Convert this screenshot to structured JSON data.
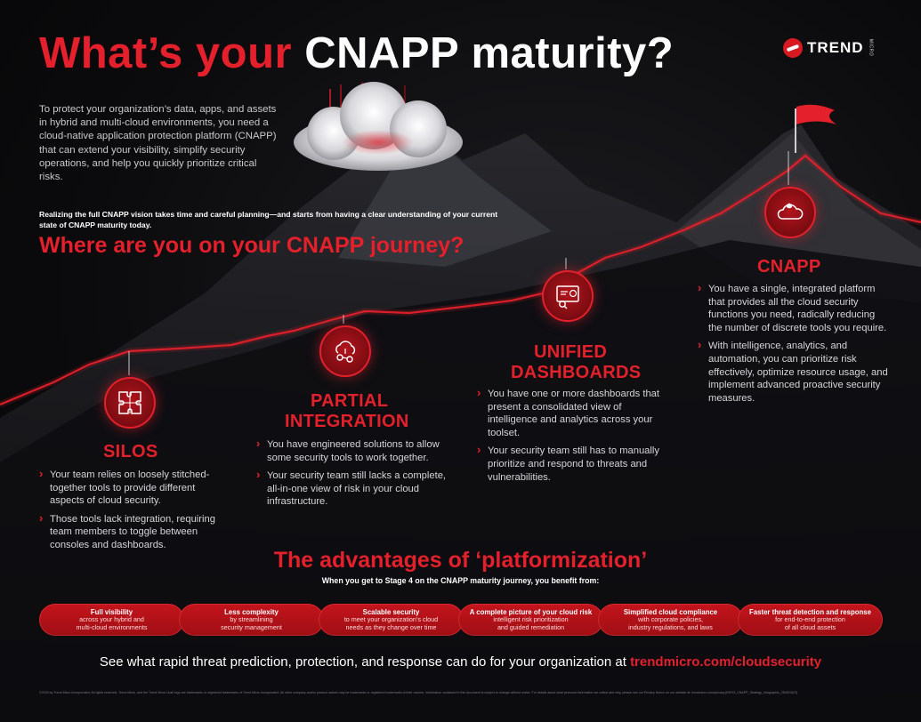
{
  "title": {
    "part1": "What’s your ",
    "part2": "CNAPP maturity?"
  },
  "logo": {
    "text": "TREND",
    "small": "MICRO"
  },
  "intro": "To protect your organization’s data, apps, and assets in hybrid and multi-cloud environments, you need a cloud-native application protection platform (CNAPP) that can extend your visibility, simplify security operations, and help you quickly prioritize critical risks.",
  "realize": "Realizing the full CNAPP vision takes time and careful planning—and starts from having a clear understanding of your current state of CNAPP maturity today.",
  "journey_heading": "Where are you on your CNAPP journey?",
  "stages": [
    {
      "title_line1": "SILOS",
      "icon": "puzzle-icon",
      "bullets": [
        "Your team relies on loosely stitched-together tools to provide different aspects of cloud security.",
        "Those tools lack integration, requiring team members to toggle between consoles and dashboards."
      ]
    },
    {
      "title_line1": "PARTIAL",
      "title_line2": "INTEGRATION",
      "icon": "cloud-network-icon",
      "bullets": [
        "You have engineered solutions to allow some security tools to work together.",
        "Your security team still lacks a complete, all-in-one view of risk in your cloud infrastructure."
      ]
    },
    {
      "title_line1": "UNIFIED",
      "title_line2": "DASHBOARDS",
      "icon": "dashboard-icon",
      "bullets": [
        "You have one or more dashboards that present a consolidated view of intelligence and analytics across your toolset.",
        "Your security team still has to manually prioritize and respond to threats and vulnerabilities."
      ]
    },
    {
      "title_line1": "CNAPP",
      "icon": "cloud-shield-icon",
      "bullets": [
        "You have a single, integrated platform that provides all the cloud security functions you need, radically reducing the number of discrete tools you require.",
        "With intelligence, analytics, and automation, you can prioritize risk effectively, optimize resource usage, and implement advanced proactive security measures."
      ]
    }
  ],
  "advantages": {
    "title": "The advantages of ‘platformization’",
    "subtitle": "When you get to Stage 4 on the CNAPP maturity journey, you benefit from:",
    "items": [
      {
        "head": "Full visibility",
        "line1": "across your hybrid and",
        "line2": "multi-cloud environments"
      },
      {
        "head": "Less complexity",
        "line1": "by streamlining",
        "line2": "security management"
      },
      {
        "head": "Scalable security",
        "line1": "to meet your organization’s cloud",
        "line2": "needs as they change over time"
      },
      {
        "head": "A complete picture of your cloud risk",
        "line1": "intelligent risk prioritization",
        "line2": "and guided remediation"
      },
      {
        "head": "Simplified cloud compliance",
        "line1": "with corporate policies,",
        "line2": "industry regulations, and laws"
      },
      {
        "head": "Faster threat detection and response",
        "line1": "for end-to-end protection",
        "line2": "of all cloud assets"
      }
    ]
  },
  "cta": {
    "text": "See what rapid threat prediction, protection, and response can do for your organization at ",
    "link": "trendmicro.com/cloudsecurity"
  },
  "footer": "©2025 by Trend Micro Incorporated. All rights reserved. Trend Micro, and the Trend Micro t-ball logo are trademarks or registered trademarks of Trend Micro Incorporated. All other company and/or product names may be trademarks or registered trademarks of their owners. Information contained in this document is subject to change without notice. For details about what personal information we collect and why, please see our Privacy Notice on our website at: trendmicro.com/privacy [INF03_CNAPP_Strategy_Infographic_250523US]",
  "colors": {
    "accent": "#e3202b",
    "background": "#0a0a0b",
    "pill": "#b3141c"
  }
}
